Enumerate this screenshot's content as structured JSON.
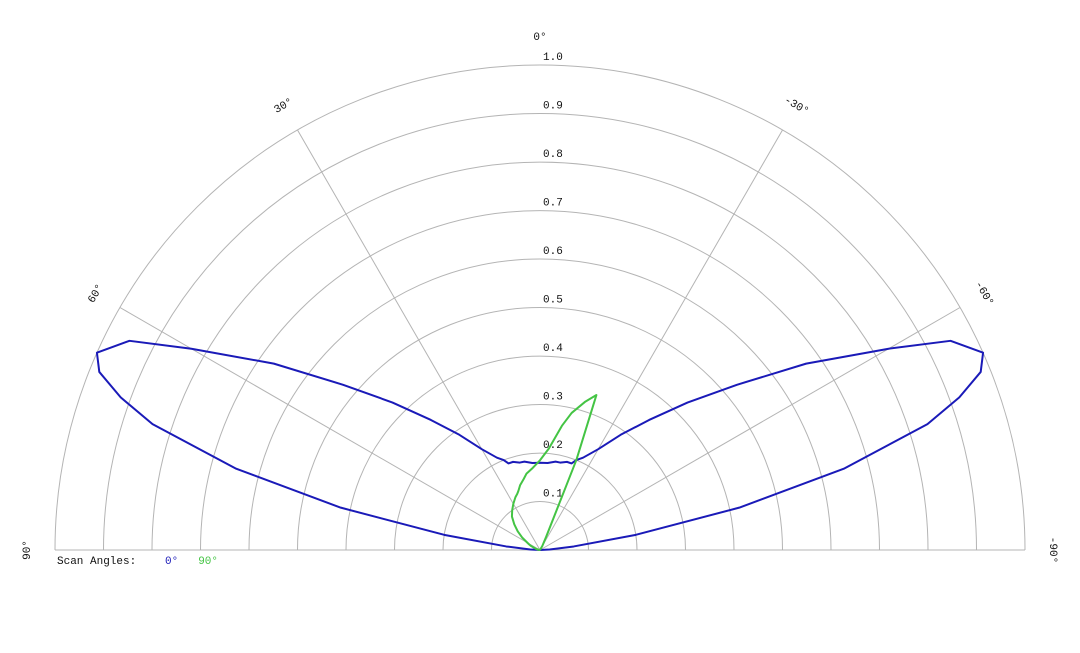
{
  "chart_data": {
    "type": "polar",
    "legend_title": "Scan Angles:",
    "x": [
      -90,
      -87,
      -84,
      -81,
      -78,
      -75,
      -72,
      -70,
      -68,
      -66,
      -63,
      -60,
      -55,
      -50,
      -45,
      -40,
      -35,
      -30,
      -25,
      -22,
      -20,
      -17,
      -13,
      -10,
      -5,
      0,
      5,
      10,
      13,
      17,
      20,
      22,
      25,
      30,
      35,
      40,
      45,
      50,
      55,
      60,
      63,
      66,
      68,
      70,
      72,
      75,
      78,
      81,
      84,
      87,
      90
    ],
    "series": [
      {
        "name": "0°",
        "color": "#1a1ab8",
        "values": [
          0,
          0.02,
          0.07,
          0.2,
          0.42,
          0.65,
          0.84,
          0.92,
          0.98,
          1.0,
          0.95,
          0.83,
          0.67,
          0.53,
          0.43,
          0.35,
          0.29,
          0.24,
          0.21,
          0.2,
          0.19,
          0.19,
          0.185,
          0.185,
          0.18,
          0.18,
          0.18,
          0.185,
          0.185,
          0.19,
          0.19,
          0.2,
          0.21,
          0.24,
          0.29,
          0.35,
          0.43,
          0.53,
          0.67,
          0.83,
          0.95,
          1.0,
          0.98,
          0.92,
          0.84,
          0.65,
          0.42,
          0.2,
          0.07,
          0.02,
          0
        ]
      },
      {
        "name": "90°",
        "color": "#44c444",
        "values": [
          0,
          0,
          0,
          0,
          0,
          0,
          0,
          0,
          0,
          0,
          0,
          0,
          0,
          0,
          0,
          0,
          0,
          0.01,
          0.03,
          0.2,
          0.34,
          0.32,
          0.29,
          0.26,
          0.21,
          0.185,
          0.17,
          0.16,
          0.15,
          0.14,
          0.13,
          0.125,
          0.12,
          0.11,
          0.1,
          0.09,
          0.075,
          0.06,
          0.045,
          0.03,
          0.025,
          0.02,
          0.015,
          0.012,
          0.01,
          0.008,
          0.005,
          0.003,
          0.002,
          0.001,
          0
        ]
      }
    ],
    "rlim": [
      0,
      1
    ],
    "rticks": [
      0.1,
      0.2,
      0.3,
      0.4,
      0.5,
      0.6,
      0.7,
      0.8,
      0.9,
      {
        "value": 1,
        "label": "1.0"
      }
    ],
    "thetalim": [
      -90,
      90
    ],
    "thetaticks": [
      {
        "value": 90,
        "label": "90°"
      },
      {
        "value": 60,
        "label": "60°"
      },
      {
        "value": 30,
        "label": "30°"
      },
      {
        "value": 0,
        "label": "0°"
      },
      {
        "value": -30,
        "label": "-30°"
      },
      {
        "value": -60,
        "label": "-60°"
      },
      {
        "value": -90,
        "label": "-90°"
      }
    ],
    "grid": true
  }
}
